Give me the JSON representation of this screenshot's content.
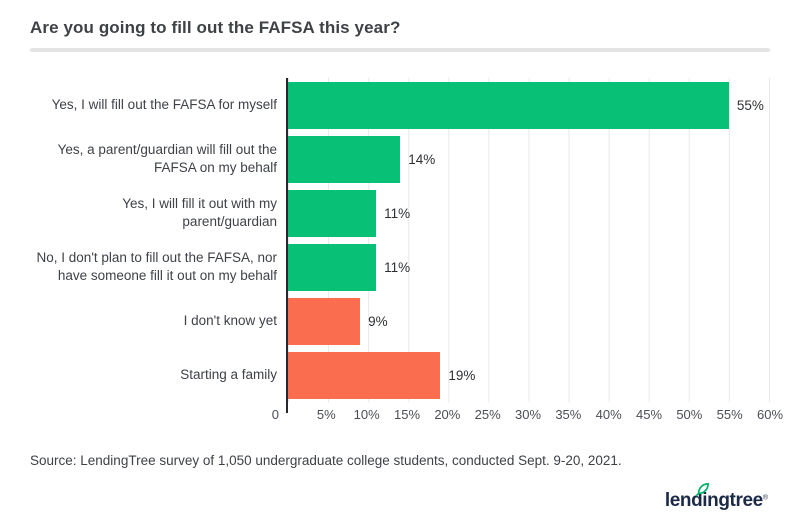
{
  "title": "Are you going to fill out the FAFSA this year?",
  "source": "Source: LendingTree survey of 1,050 undergraduate college students, conducted Sept. 9-20, 2021.",
  "logo": {
    "text": "lendingtree",
    "trademark": "®",
    "leaf_color": "#00b46a",
    "text_color": "#1b2a47"
  },
  "colors": {
    "green": "#08c177",
    "orange": "#fa6d4f",
    "grid": "#e8e8e8",
    "axis": "#26282c",
    "divider": "#e4e4e4",
    "navy": "#1b2a47"
  },
  "chart_data": {
    "type": "bar",
    "orientation": "horizontal",
    "title": "Are you going to fill out the FAFSA this year?",
    "categories": [
      "Yes, I will fill out the FAFSA for myself",
      "Yes, a parent/guardian will fill out the FAFSA on my behalf",
      "Yes, I will fill it out with my parent/guardian",
      "No, I don't plan to fill out the FAFSA, nor have someone fill it out on my behalf",
      "I don't know yet",
      "Starting a family"
    ],
    "values": [
      55,
      14,
      11,
      11,
      9,
      19
    ],
    "data_labels": [
      "55%",
      "14%",
      "11%",
      "11%",
      "9%",
      "19%"
    ],
    "bar_colors": [
      "#08c177",
      "#08c177",
      "#08c177",
      "#08c177",
      "#fa6d4f",
      "#fa6d4f"
    ],
    "x_ticks": [
      "0",
      "5%",
      "10%",
      "15%",
      "20%",
      "25%",
      "30%",
      "35%",
      "40%",
      "45%",
      "50%",
      "55%",
      "60%"
    ],
    "xlim": [
      0,
      60
    ],
    "grid": "vertical-light",
    "legend": "none"
  }
}
